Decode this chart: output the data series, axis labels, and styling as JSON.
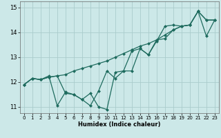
{
  "xlabel": "Humidex (Indice chaleur)",
  "bg_color": "#cce8e8",
  "line_color": "#1e6b5e",
  "grid_color": "#aacccc",
  "xlim": [
    -0.5,
    23.5
  ],
  "ylim": [
    10.75,
    15.25
  ],
  "xticks": [
    0,
    1,
    2,
    3,
    4,
    5,
    6,
    7,
    8,
    9,
    10,
    11,
    12,
    13,
    14,
    15,
    16,
    17,
    18,
    19,
    20,
    21,
    22,
    23
  ],
  "yticks": [
    11,
    12,
    13,
    14,
    15
  ],
  "line1_x": [
    0,
    1,
    2,
    3,
    4,
    5,
    6,
    7,
    8,
    9,
    10,
    11,
    12,
    13,
    14,
    15,
    16,
    17,
    18,
    19,
    20,
    21,
    22,
    23
  ],
  "line1_y": [
    11.9,
    12.15,
    12.1,
    12.2,
    12.25,
    12.3,
    12.45,
    12.55,
    12.65,
    12.75,
    12.85,
    13.0,
    13.15,
    13.3,
    13.45,
    13.55,
    13.7,
    13.9,
    14.1,
    14.25,
    14.3,
    14.85,
    14.5,
    14.5
  ],
  "line2_x": [
    0,
    1,
    2,
    3,
    4,
    5,
    6,
    7,
    8,
    9,
    10,
    11,
    12,
    13,
    14,
    15,
    16,
    17,
    18,
    19,
    20,
    21,
    22,
    23
  ],
  "line2_y": [
    11.9,
    12.15,
    12.1,
    12.25,
    11.05,
    11.6,
    11.5,
    11.3,
    11.05,
    11.65,
    12.45,
    12.15,
    12.45,
    13.25,
    13.35,
    13.1,
    13.65,
    14.25,
    14.3,
    14.25,
    14.3,
    14.85,
    14.5,
    14.5
  ],
  "line3_x": [
    0,
    1,
    2,
    3,
    4,
    5,
    6,
    7,
    8,
    9,
    10,
    11,
    12,
    13,
    14,
    15,
    16,
    17,
    18,
    19,
    20,
    21,
    22,
    23
  ],
  "line3_y": [
    11.9,
    12.15,
    12.1,
    12.2,
    12.25,
    11.55,
    11.5,
    11.3,
    11.55,
    11.0,
    10.9,
    12.4,
    12.45,
    12.45,
    13.35,
    13.1,
    13.7,
    13.75,
    14.1,
    14.25,
    14.3,
    14.85,
    13.85,
    14.5
  ]
}
